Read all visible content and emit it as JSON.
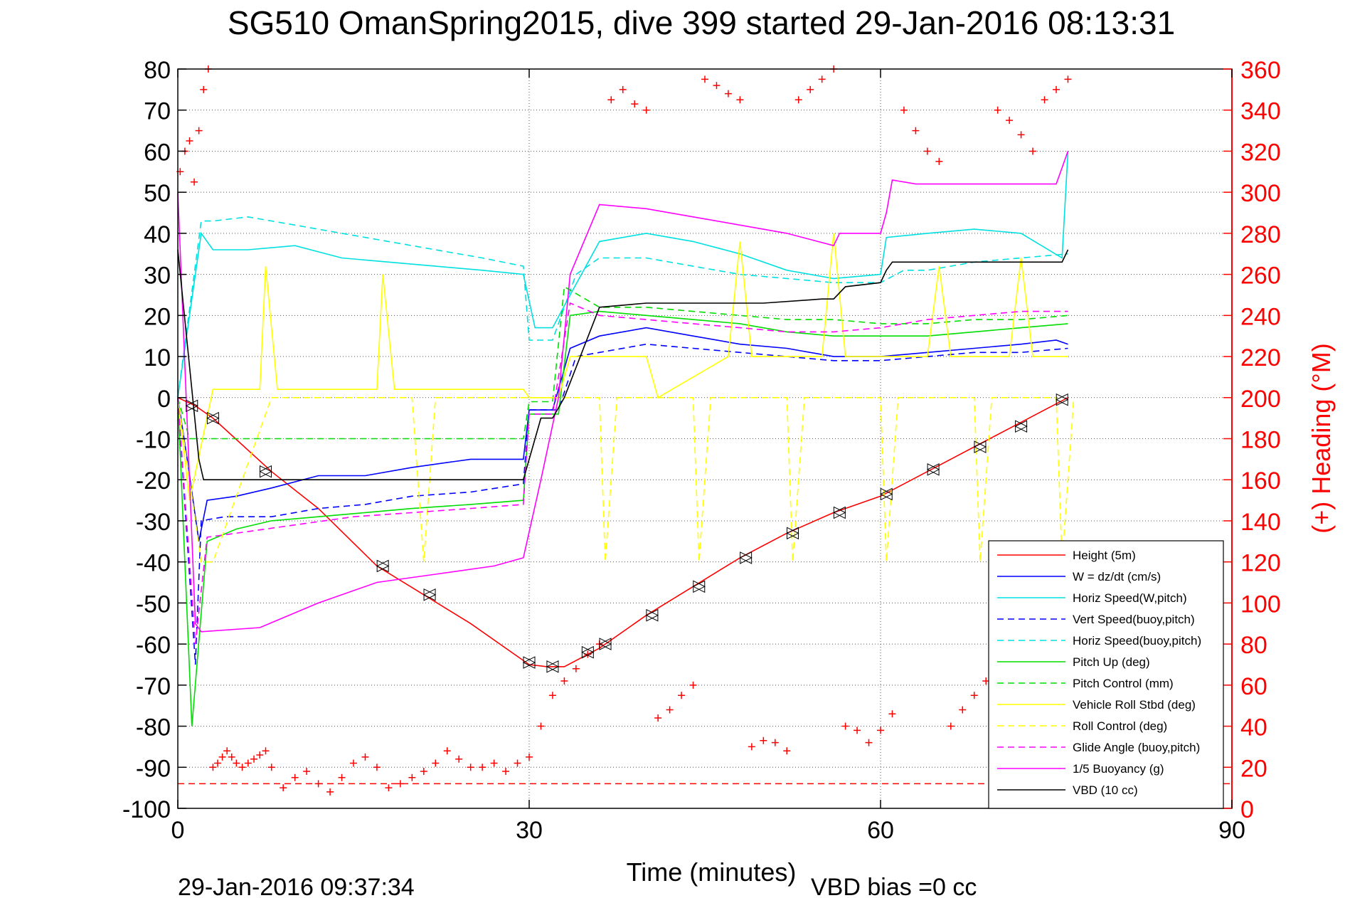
{
  "chart_data": {
    "type": "line",
    "title": "SG510 OmanSpring2015, dive 399 started 29-Jan-2016 08:13:31",
    "xlabel": "Time (minutes)",
    "ylabel": "",
    "y2label": "(+) Heading (°M)",
    "xlim": [
      0,
      90
    ],
    "ylim": [
      -100,
      80
    ],
    "y2lim": [
      0,
      360
    ],
    "xticks": [
      "0",
      "30",
      "60",
      "90"
    ],
    "yticks": [
      "80",
      "70",
      "60",
      "50",
      "40",
      "30",
      "20",
      "10",
      "0",
      "-10",
      "-20",
      "-30",
      "-40",
      "-50",
      "-60",
      "-70",
      "-80",
      "-90",
      "-100"
    ],
    "y2ticks": [
      "360",
      "340",
      "320",
      "300",
      "280",
      "260",
      "240",
      "220",
      "200",
      "180",
      "160",
      "140",
      "120",
      "100",
      "80",
      "60",
      "40",
      "20",
      "0"
    ],
    "grid": true,
    "legend_position": "bottom-right",
    "footer_left": "29-Jan-2016 09:37:34",
    "footer_right": "VBD bias =0 cc",
    "series": [
      {
        "name": "Height (5m)",
        "color": "#ff0000",
        "dash": "",
        "x": [
          0,
          1.5,
          3,
          8,
          12,
          17,
          21,
          25,
          30,
          31.5,
          33,
          36,
          40,
          44,
          48,
          52,
          56,
          60,
          64,
          68,
          72,
          76
        ],
        "y": [
          0,
          -2,
          -5,
          -18,
          -27,
          -41,
          -48,
          -55,
          -65,
          -65.5,
          -65.5,
          -61,
          -53,
          -46,
          -39,
          -33,
          -28,
          -24,
          -18,
          -12,
          -6,
          0
        ]
      },
      {
        "name": "W = dz/dt (cm/s)",
        "color": "#0000ff",
        "dash": "",
        "x": [
          0,
          0.8,
          1.8,
          2.5,
          5,
          8,
          12,
          16,
          20,
          25,
          29.5,
          30,
          32,
          33.5,
          36,
          40,
          44,
          48,
          52,
          56,
          60,
          64,
          68,
          72,
          75,
          76
        ],
        "y": [
          0,
          -15,
          -35,
          -25,
          -24,
          -22,
          -19,
          -19,
          -17,
          -15,
          -15,
          -3,
          -3,
          12,
          15,
          17,
          15,
          13,
          12,
          10,
          10,
          11,
          12,
          13,
          14,
          13
        ]
      },
      {
        "name": "Horiz Speed(W,pitch)",
        "color": "#00e0e0",
        "dash": "",
        "x": [
          0,
          1,
          2,
          3,
          6,
          10,
          14,
          18,
          22,
          26,
          29.5,
          30.5,
          32,
          33.5,
          36,
          40,
          44,
          48,
          52,
          56,
          60,
          60.5,
          64,
          68,
          72,
          75.5,
          76
        ],
        "y": [
          0,
          20,
          40,
          36,
          36,
          37,
          34,
          33,
          32,
          31,
          30,
          17,
          17,
          25,
          38,
          40,
          38,
          35,
          31,
          29,
          30,
          39,
          40,
          41,
          40,
          34,
          60
        ]
      },
      {
        "name": "Vert Speed(buoy,pitch)",
        "color": "#0000ff",
        "dash": "9,6",
        "x": [
          0,
          1.5,
          2,
          4,
          8,
          12,
          16,
          20,
          25,
          29.5,
          30,
          32.5,
          34,
          36,
          40,
          44,
          48,
          52,
          56,
          60,
          64,
          68,
          72,
          76
        ],
        "y": [
          0,
          -65,
          -30,
          -29,
          -29,
          -27,
          -26,
          -24,
          -23,
          -21,
          -3,
          -3,
          10,
          11,
          13,
          12,
          11,
          10,
          9,
          9,
          10,
          11,
          11,
          12
        ]
      },
      {
        "name": "Horiz Speed(buoy,pitch)",
        "color": "#00e0e0",
        "dash": "9,6",
        "x": [
          0,
          2,
          3,
          6,
          10,
          14,
          18,
          22,
          26,
          29.5,
          30,
          32,
          34,
          36,
          40,
          44,
          48,
          52,
          56,
          60,
          62,
          64,
          68,
          72,
          76
        ],
        "y": [
          0,
          43,
          43,
          44,
          42,
          40,
          38,
          36,
          34,
          32,
          14,
          14,
          30,
          34,
          34,
          32,
          30,
          29,
          28,
          28,
          31,
          31,
          33,
          34,
          35
        ]
      },
      {
        "name": "Pitch Up (deg)",
        "color": "#00dd00",
        "dash": "",
        "x": [
          0,
          1.2,
          2.5,
          5,
          8,
          12,
          16,
          20,
          25,
          29.5,
          30,
          32.5,
          33.5,
          36,
          40,
          44,
          48,
          52,
          56,
          60,
          64,
          68,
          72,
          76
        ],
        "y": [
          0,
          -80,
          -35,
          -32,
          -30,
          -29,
          -28,
          -27,
          -26,
          -25,
          -4,
          -4,
          20,
          21,
          20,
          19,
          18,
          16,
          15,
          15,
          15,
          16,
          17,
          18
        ]
      },
      {
        "name": "Pitch Control (mm)",
        "color": "#00dd00",
        "dash": "9,6",
        "x": [
          0,
          1,
          2,
          5,
          10,
          15,
          20,
          25,
          29.5,
          30,
          32,
          33,
          36,
          40,
          44,
          48,
          52,
          56,
          60,
          64,
          68,
          72,
          76
        ],
        "y": [
          0,
          -10,
          -10,
          -10,
          -10,
          -10,
          -10,
          -10,
          -10,
          -1,
          -1,
          27,
          22,
          22,
          21,
          20,
          19,
          19,
          18,
          18,
          19,
          19,
          20
        ]
      },
      {
        "name": "Vehicle Roll Stbd (deg)",
        "color": "#ffff00",
        "dash": "",
        "x": [
          0,
          1,
          3,
          7,
          7.5,
          8.5,
          15,
          17,
          17.5,
          18.5,
          22,
          29.5,
          30,
          32.5,
          33.5,
          38,
          40,
          41,
          47,
          48,
          49,
          55,
          56,
          57,
          64,
          65,
          66,
          71,
          72,
          73,
          76
        ],
        "y": [
          0,
          -25,
          2,
          2,
          32,
          2,
          2,
          2,
          30,
          2,
          2,
          2,
          0,
          0,
          10,
          10,
          10,
          0,
          10,
          38,
          10,
          10,
          40,
          10,
          10,
          32,
          10,
          10,
          34,
          10,
          10
        ]
      },
      {
        "name": "Roll Control (deg)",
        "color": "#ffff00",
        "dash": "9,6",
        "x": [
          0,
          2,
          3,
          8,
          14,
          20,
          21,
          22,
          30,
          33,
          36,
          36.5,
          37.5,
          44,
          44.5,
          45.5,
          52,
          52.5,
          53.5,
          60,
          60.5,
          61.5,
          68,
          68.5,
          69.5,
          75,
          75.5,
          76.5
        ],
        "y": [
          0,
          -40,
          -40,
          0,
          0,
          0,
          -40,
          0,
          0,
          0,
          0,
          -40,
          0,
          0,
          -40,
          0,
          0,
          -40,
          0,
          0,
          -40,
          0,
          0,
          -40,
          0,
          0,
          -40,
          0
        ]
      },
      {
        "name": "Glide Angle (buoy,pitch)",
        "color": "#ff00ff",
        "dash": "9,6",
        "x": [
          0,
          1.5,
          2.5,
          5,
          10,
          15,
          20,
          25,
          29.5,
          30,
          32,
          33.5,
          36,
          40,
          44,
          48,
          52,
          56,
          60,
          64,
          68,
          72,
          76
        ],
        "y": [
          0,
          -60,
          -34,
          -33,
          -31,
          -29,
          -28,
          -27,
          -26,
          -4,
          -4,
          23,
          20,
          19,
          18,
          17,
          16,
          16,
          17,
          19,
          20,
          21,
          21
        ]
      },
      {
        "name": "1/5 Buoyancy (g)",
        "color": "#ff00ff",
        "dash": "",
        "x": [
          0,
          1.5,
          2,
          7,
          12,
          17,
          22,
          27,
          29.5,
          31,
          32.5,
          33.5,
          36,
          40,
          44,
          48,
          52,
          56,
          56.5,
          60,
          60.5,
          61,
          63,
          70,
          75,
          76
        ],
        "y": [
          50,
          -55,
          -57,
          -56,
          -50,
          -45,
          -43,
          -41,
          -39,
          -20,
          0,
          30,
          47,
          46,
          44,
          42,
          40,
          37,
          40,
          40,
          45,
          53,
          52,
          52,
          52,
          60
        ]
      },
      {
        "name": "VBD (10 cc)",
        "color": "#000000",
        "dash": "",
        "x": [
          0,
          1.8,
          2.2,
          10,
          20,
          29.5,
          31,
          32,
          33,
          36,
          40,
          50,
          55,
          56,
          57,
          60,
          60.5,
          61,
          66,
          70,
          75.5,
          76
        ],
        "y": [
          36,
          -15,
          -20,
          -20,
          -20,
          -20,
          -5,
          -5,
          0,
          22,
          23,
          23,
          24,
          24,
          27,
          28,
          31,
          33,
          33,
          33,
          33,
          36
        ]
      }
    ],
    "heading_points": {
      "name": "Heading",
      "color": "#ff0000",
      "x": [
        0.2,
        0.6,
        1.0,
        1.4,
        1.8,
        2.2,
        2.6,
        3.0,
        3.4,
        3.8,
        4.2,
        4.6,
        5.0,
        5.5,
        6.0,
        6.5,
        7.0,
        7.5,
        8.0,
        9.0,
        10.0,
        11.0,
        12.0,
        13.0,
        14.0,
        15.0,
        16.0,
        17.0,
        18.0,
        19.0,
        20.0,
        21.0,
        22.0,
        23.0,
        24.0,
        25.0,
        26.0,
        27.0,
        28.0,
        29.0,
        30.0,
        31.0,
        32.0,
        33.0,
        34.0,
        35.0,
        36.0,
        37.0,
        38.0,
        39.0,
        40.0,
        41.0,
        42.0,
        43.0,
        44.0,
        45.0,
        46.0,
        47.0,
        48.0,
        49.0,
        50.0,
        51.0,
        52.0,
        53.0,
        54.0,
        55.0,
        56.0,
        57.0,
        58.0,
        59.0,
        60.0,
        61.0,
        62.0,
        63.0,
        64.0,
        65.0,
        66.0,
        67.0,
        68.0,
        69.0,
        70.0,
        71.0,
        72.0,
        73.0,
        74.0,
        75.0,
        76.0
      ],
      "y": [
        310,
        320,
        325,
        305,
        330,
        350,
        360,
        20,
        22,
        25,
        28,
        25,
        22,
        20,
        22,
        24,
        26,
        28,
        20,
        10,
        15,
        18,
        12,
        8,
        15,
        22,
        25,
        20,
        10,
        12,
        15,
        18,
        22,
        28,
        24,
        20,
        20,
        22,
        18,
        22,
        25,
        40,
        55,
        62,
        68,
        75,
        80,
        345,
        350,
        343,
        340,
        44,
        48,
        55,
        60,
        355,
        352,
        348,
        345,
        30,
        33,
        32,
        28,
        345,
        350,
        355,
        360,
        40,
        38,
        32,
        38,
        46,
        340,
        330,
        320,
        315,
        40,
        48,
        55,
        62,
        340,
        335,
        328,
        320,
        345,
        350,
        355
      ]
    },
    "triangle_markers": {
      "x": [
        1.2,
        3.0,
        7.5,
        17.5,
        21.5,
        30.0,
        32.0,
        35.0,
        36.5,
        40.5,
        44.5,
        48.5,
        52.5,
        56.5,
        60.5,
        64.5,
        68.5,
        72.0,
        75.5
      ],
      "y": [
        -2,
        -5,
        -18,
        -41,
        -48,
        -64.5,
        -65.5,
        -62,
        -60,
        -53,
        -46,
        -39,
        -33,
        -28,
        -23.5,
        -17.5,
        -12,
        -7,
        -0.5
      ]
    },
    "reference_line": {
      "y2": 12,
      "color": "#ff0000",
      "dash": "9,6"
    }
  }
}
